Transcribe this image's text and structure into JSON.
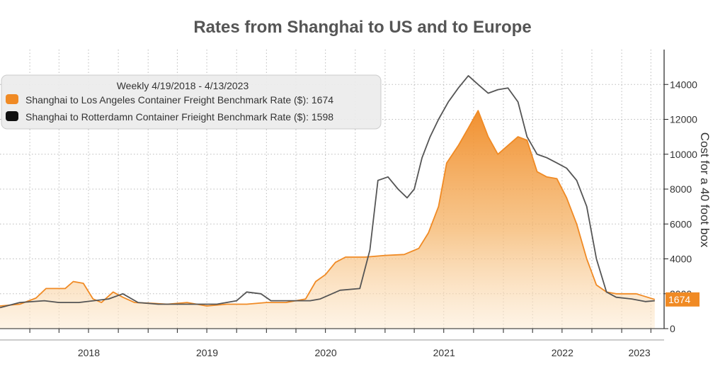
{
  "chart_data": {
    "type": "area",
    "title": "Rates from Shanghai to US and to Europe",
    "ylabel": "Cost for a 40 foot box",
    "xlabel": "",
    "ylim": [
      0,
      16000
    ],
    "yticks": [
      0,
      2000,
      4000,
      6000,
      8000,
      10000,
      12000,
      14000
    ],
    "x_range": [
      "2017-10-01",
      "2023-04-20"
    ],
    "x_tick_labels": [
      "2018",
      "2019",
      "2020",
      "2021",
      "2022",
      "2023"
    ],
    "grid": true,
    "legend": {
      "placement": "top-left",
      "header": "Weekly 4/19/2018 - 4/13/2023",
      "entries": [
        "Shanghai to Los Angeles Container Freight Benchmark Rate ($): 1674",
        "Shanghai to Rotterdamn Container Frieight Benchmark Rate ($): 1598"
      ]
    },
    "last_value_label": "1674",
    "series": [
      {
        "name": "Shanghai to Los Angeles Container Freight Benchmark Rate ($)",
        "color": "#F08A24",
        "fill": true,
        "points": [
          [
            "2017-10-01",
            1300
          ],
          [
            "2017-12-01",
            1400
          ],
          [
            "2018-01-20",
            1750
          ],
          [
            "2018-02-20",
            2300
          ],
          [
            "2018-04-20",
            2300
          ],
          [
            "2018-05-15",
            2700
          ],
          [
            "2018-06-15",
            2600
          ],
          [
            "2018-07-15",
            1700
          ],
          [
            "2018-08-10",
            1500
          ],
          [
            "2018-09-15",
            2100
          ],
          [
            "2018-10-15",
            1800
          ],
          [
            "2018-11-20",
            1500
          ],
          [
            "2019-01-15",
            1450
          ],
          [
            "2019-03-01",
            1400
          ],
          [
            "2019-05-01",
            1500
          ],
          [
            "2019-07-01",
            1300
          ],
          [
            "2019-09-01",
            1400
          ],
          [
            "2019-11-01",
            1400
          ],
          [
            "2020-01-01",
            1500
          ],
          [
            "2020-03-01",
            1500
          ],
          [
            "2020-05-01",
            1700
          ],
          [
            "2020-06-01",
            2700
          ],
          [
            "2020-07-01",
            3100
          ],
          [
            "2020-08-01",
            3800
          ],
          [
            "2020-09-01",
            4100
          ],
          [
            "2020-11-01",
            4100
          ],
          [
            "2021-01-01",
            4200
          ],
          [
            "2021-03-01",
            4250
          ],
          [
            "2021-04-15",
            4600
          ],
          [
            "2021-05-15",
            5500
          ],
          [
            "2021-06-15",
            7000
          ],
          [
            "2021-07-10",
            9500
          ],
          [
            "2021-08-15",
            10500
          ],
          [
            "2021-09-15",
            11500
          ],
          [
            "2021-10-15",
            12500
          ],
          [
            "2021-11-15",
            11000
          ],
          [
            "2021-12-15",
            10000
          ],
          [
            "2022-01-15",
            10500
          ],
          [
            "2022-02-15",
            11000
          ],
          [
            "2022-03-15",
            10800
          ],
          [
            "2022-04-15",
            9000
          ],
          [
            "2022-05-15",
            8700
          ],
          [
            "2022-06-15",
            8600
          ],
          [
            "2022-07-15",
            7500
          ],
          [
            "2022-08-15",
            6000
          ],
          [
            "2022-09-15",
            4000
          ],
          [
            "2022-10-15",
            2500
          ],
          [
            "2022-11-15",
            2100
          ],
          [
            "2022-12-15",
            2000
          ],
          [
            "2023-02-15",
            2000
          ],
          [
            "2023-04-13",
            1674
          ]
        ]
      },
      {
        "name": "Shanghai to Rotterdamn Container Frieight Benchmark Rate ($)",
        "color": "#555555",
        "fill": false,
        "points": [
          [
            "2017-10-01",
            1200
          ],
          [
            "2017-12-01",
            1500
          ],
          [
            "2018-02-15",
            1600
          ],
          [
            "2018-04-01",
            1500
          ],
          [
            "2018-06-01",
            1500
          ],
          [
            "2018-09-01",
            1700
          ],
          [
            "2018-10-15",
            2000
          ],
          [
            "2018-12-01",
            1500
          ],
          [
            "2019-02-01",
            1400
          ],
          [
            "2019-05-01",
            1400
          ],
          [
            "2019-08-01",
            1400
          ],
          [
            "2019-10-01",
            1600
          ],
          [
            "2019-11-01",
            2100
          ],
          [
            "2019-12-15",
            2000
          ],
          [
            "2020-01-15",
            1600
          ],
          [
            "2020-03-15",
            1600
          ],
          [
            "2020-05-15",
            1600
          ],
          [
            "2020-06-15",
            1700
          ],
          [
            "2020-08-15",
            2200
          ],
          [
            "2020-10-15",
            2300
          ],
          [
            "2020-11-15",
            4500
          ],
          [
            "2020-12-10",
            8500
          ],
          [
            "2021-01-10",
            8700
          ],
          [
            "2021-02-10",
            8000
          ],
          [
            "2021-03-10",
            7500
          ],
          [
            "2021-04-01",
            8000
          ],
          [
            "2021-04-25",
            9800
          ],
          [
            "2021-05-20",
            11000
          ],
          [
            "2021-06-15",
            12000
          ],
          [
            "2021-07-15",
            13000
          ],
          [
            "2021-08-15",
            13800
          ],
          [
            "2021-09-15",
            14500
          ],
          [
            "2021-10-15",
            14000
          ],
          [
            "2021-11-15",
            13500
          ],
          [
            "2021-12-15",
            13700
          ],
          [
            "2022-01-15",
            13800
          ],
          [
            "2022-02-15",
            13000
          ],
          [
            "2022-03-15",
            11000
          ],
          [
            "2022-04-15",
            10000
          ],
          [
            "2022-05-15",
            9800
          ],
          [
            "2022-06-15",
            9500
          ],
          [
            "2022-07-15",
            9200
          ],
          [
            "2022-08-15",
            8500
          ],
          [
            "2022-09-15",
            7000
          ],
          [
            "2022-10-15",
            4000
          ],
          [
            "2022-11-15",
            2100
          ],
          [
            "2022-12-15",
            1800
          ],
          [
            "2023-02-01",
            1700
          ],
          [
            "2023-03-15",
            1550
          ],
          [
            "2023-04-13",
            1598
          ]
        ]
      }
    ]
  }
}
